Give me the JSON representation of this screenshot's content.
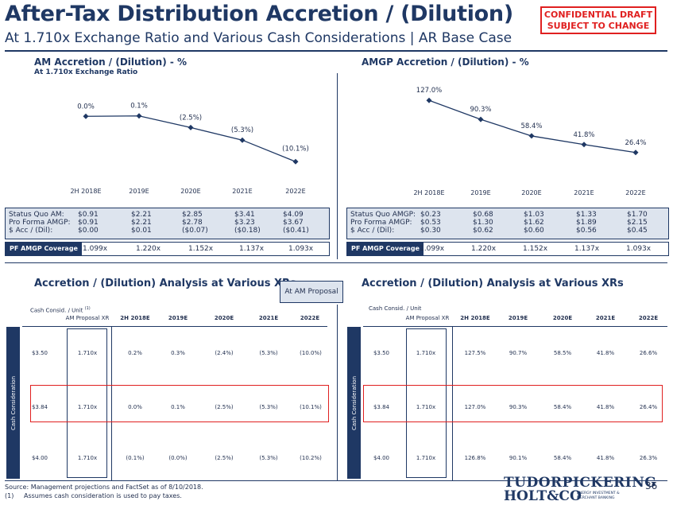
{
  "header": {
    "title": "After-Tax Distribution Accretion / (Dilution)",
    "subtitle": "At 1.710x Exchange Ratio and Various Cash Considerations | AR Base Case",
    "confidential_line1": "CONFIDENTIAL DRAFT",
    "confidential_line2": "SUBJECT TO CHANGE"
  },
  "am_section": {
    "title": "AM Accretion / (Dilution) - %",
    "subtitle": "At 1.710x Exchange Ratio"
  },
  "amgp_section": {
    "title": "AMGP Accretion / (Dilution) - %"
  },
  "chart_data": [
    {
      "type": "line",
      "title": "AM Accretion / (Dilution) - %",
      "categories": [
        "2H 2018E",
        "2019E",
        "2020E",
        "2021E",
        "2022E"
      ],
      "values": [
        0.0,
        0.1,
        -2.5,
        -5.3,
        -10.1
      ],
      "data_labels": [
        "0.0%",
        "0.1%",
        "(2.5%)",
        "(5.3%)",
        "(10.1%)"
      ],
      "ylim": [
        -12,
        2
      ],
      "color": "#1f3864",
      "marker": "diamond"
    },
    {
      "type": "line",
      "title": "AMGP Accretion / (Dilution) - %",
      "categories": [
        "2H 2018E",
        "2019E",
        "2020E",
        "2021E",
        "2022E"
      ],
      "values": [
        127.0,
        90.3,
        58.4,
        41.8,
        26.4
      ],
      "data_labels": [
        "127.0%",
        "90.3%",
        "58.4%",
        "41.8%",
        "26.4%"
      ],
      "ylim": [
        0,
        135
      ],
      "color": "#1f3864",
      "marker": "diamond"
    }
  ],
  "am_metrics": {
    "labels": [
      "Status Quo AM:",
      "Pro Forma AMGP:",
      "$ Acc / (Dil):"
    ],
    "columns": [
      [
        "$0.91",
        "$0.91",
        "$0.00"
      ],
      [
        "$2.21",
        "$2.21",
        "$0.01"
      ],
      [
        "$2.85",
        "$2.78",
        "($0.07)"
      ],
      [
        "$3.41",
        "$3.23",
        "($0.18)"
      ],
      [
        "$4.09",
        "$3.67",
        "($0.41)"
      ]
    ],
    "coverage_label": "PF AMGP Coverage",
    "coverage": [
      "1.099x",
      "1.220x",
      "1.152x",
      "1.137x",
      "1.093x"
    ]
  },
  "amgp_metrics": {
    "labels": [
      "Status Quo AMGP:",
      "Pro Forma AMGP:",
      "$ Acc / (Dil):"
    ],
    "columns": [
      [
        "$0.23",
        "$0.53",
        "$0.30"
      ],
      [
        "$0.68",
        "$1.30",
        "$0.62"
      ],
      [
        "$1.03",
        "$1.62",
        "$0.60"
      ],
      [
        "$1.33",
        "$1.89",
        "$0.56"
      ],
      [
        "$1.70",
        "$2.15",
        "$0.45"
      ]
    ],
    "coverage_label": "PF AMGP Coverage",
    "coverage": [
      "1.099x",
      "1.220x",
      "1.152x",
      "1.137x",
      "1.093x"
    ]
  },
  "analysis": {
    "title_left": "Accretion / (Dilution) Analysis at Various XRs",
    "title_right": "Accretion / (Dilution) Analysis at Various XRs",
    "proposal_label": "At AM Proposal",
    "side_label": "Cash Consideration",
    "headers": {
      "cash": "Cash Consid. / Unit",
      "cash_footnote": "(1)",
      "xr": "AM Proposal XR",
      "years": [
        "2H 2018E",
        "2019E",
        "2020E",
        "2021E",
        "2022E"
      ]
    },
    "left_rows": [
      {
        "cash": "$3.50",
        "xr": "1.710x",
        "vals": [
          "0.2%",
          "0.3%",
          "(2.4%)",
          "(5.3%)",
          "(10.0%)"
        ]
      },
      {
        "cash": "$3.84",
        "xr": "1.710x",
        "vals": [
          "0.0%",
          "0.1%",
          "(2.5%)",
          "(5.3%)",
          "(10.1%)"
        ]
      },
      {
        "cash": "$4.00",
        "xr": "1.710x",
        "vals": [
          "(0.1%)",
          "(0.0%)",
          "(2.5%)",
          "(5.3%)",
          "(10.2%)"
        ]
      }
    ],
    "right_rows": [
      {
        "cash": "$3.50",
        "xr": "1.710x",
        "vals": [
          "127.5%",
          "90.7%",
          "58.5%",
          "41.8%",
          "26.6%"
        ]
      },
      {
        "cash": "$3.84",
        "xr": "1.710x",
        "vals": [
          "127.0%",
          "90.3%",
          "58.4%",
          "41.8%",
          "26.4%"
        ]
      },
      {
        "cash": "$4.00",
        "xr": "1.710x",
        "vals": [
          "126.8%",
          "90.1%",
          "58.4%",
          "41.8%",
          "26.3%"
        ]
      }
    ]
  },
  "footer": {
    "source": "Source: Management projections and FactSet as of 8/10/2018.",
    "note_num": "(1)",
    "note_text": "Assumes cash consideration is used to pay taxes.",
    "logo_line1": "TUDORPICKERING",
    "logo_line2": "HOLT&CO",
    "logo_line3a": "ENERGY INVESTMENT &",
    "logo_line3b": "MERCHANT BANKING",
    "page_number": "36"
  }
}
